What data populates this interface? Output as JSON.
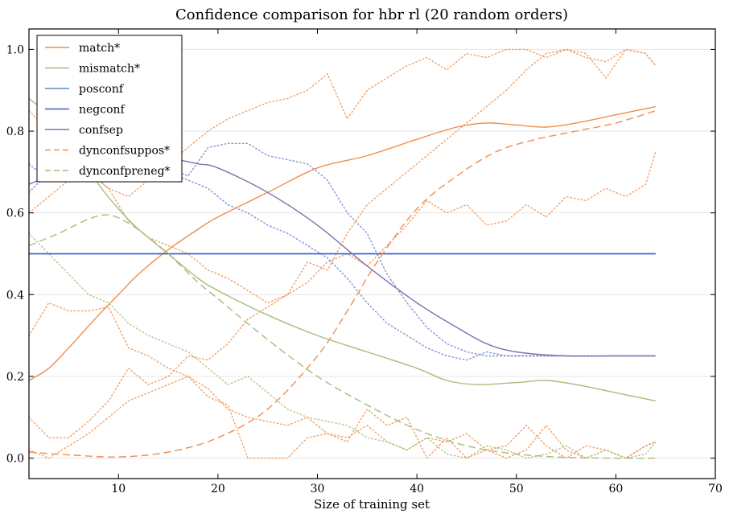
{
  "chart_data": {
    "type": "line",
    "title": "Confidence comparison for hbr rl (20 random orders)",
    "xlabel": "Size of training set",
    "ylabel": "",
    "xlim": [
      1,
      70
    ],
    "ylim": [
      -0.05,
      1.05
    ],
    "xticks": [
      10,
      20,
      30,
      40,
      50,
      60,
      70
    ],
    "yticks": [
      0.0,
      0.2,
      0.4,
      0.6,
      0.8,
      1.0
    ],
    "ytick_labels": [
      "0.0",
      "0.2",
      "0.4",
      "0.6",
      "0.8",
      "1.0"
    ],
    "grid": "horizontal",
    "legend_position": "top-left",
    "series": [
      {
        "name": "match*",
        "color": "#f28e4a",
        "style": "solid",
        "x": [
          1,
          3,
          5,
          8,
          10,
          12,
          15,
          18,
          20,
          25,
          30,
          35,
          40,
          44,
          47,
          50,
          53,
          56,
          60,
          64
        ],
        "values": [
          0.19,
          0.22,
          0.27,
          0.35,
          0.4,
          0.45,
          0.51,
          0.56,
          0.59,
          0.65,
          0.71,
          0.74,
          0.78,
          0.81,
          0.82,
          0.815,
          0.81,
          0.82,
          0.84,
          0.86
        ]
      },
      {
        "name": "mismatch*",
        "color": "#a6bd7a",
        "style": "solid",
        "x": [
          1,
          4,
          6,
          8,
          10,
          12,
          15,
          18,
          20,
          25,
          30,
          35,
          40,
          43,
          46,
          50,
          53,
          56,
          60,
          64
        ],
        "values": [
          0.88,
          0.82,
          0.75,
          0.67,
          0.61,
          0.56,
          0.5,
          0.44,
          0.41,
          0.35,
          0.3,
          0.26,
          0.22,
          0.19,
          0.18,
          0.185,
          0.19,
          0.18,
          0.16,
          0.14
        ]
      },
      {
        "name": "posconf",
        "color": "#5a8fc2",
        "style": "solid",
        "x": [
          1,
          64
        ],
        "values": [
          0.5,
          0.5
        ]
      },
      {
        "name": "negconf",
        "color": "#3b5fcf",
        "style": "solid",
        "x": [
          1,
          64
        ],
        "values": [
          0.5,
          0.5
        ]
      },
      {
        "name": "confsep",
        "color": "#8470ad",
        "style": "solid",
        "x": [
          1,
          3,
          5,
          8,
          10,
          13,
          15,
          18,
          20,
          25,
          30,
          35,
          40,
          44,
          47,
          50,
          55,
          60,
          64
        ],
        "values": [
          0.67,
          0.69,
          0.71,
          0.73,
          0.74,
          0.74,
          0.735,
          0.72,
          0.71,
          0.65,
          0.57,
          0.47,
          0.38,
          0.32,
          0.28,
          0.26,
          0.25,
          0.25,
          0.25
        ]
      },
      {
        "name": "dynconfsuppos*",
        "color": "#f28e4a",
        "style": "dashed",
        "x": [
          1,
          5,
          10,
          15,
          20,
          25,
          30,
          33,
          36,
          40,
          44,
          48,
          52,
          56,
          60,
          64
        ],
        "values": [
          0.015,
          0.008,
          0.003,
          0.015,
          0.05,
          0.12,
          0.25,
          0.36,
          0.48,
          0.61,
          0.69,
          0.75,
          0.78,
          0.8,
          0.82,
          0.85
        ]
      },
      {
        "name": "dynconfpreneg*",
        "color": "#a6bd7a",
        "style": "dashed",
        "x": [
          1,
          4,
          7,
          9,
          11,
          13,
          15,
          18,
          20,
          25,
          30,
          35,
          40,
          45,
          50,
          55,
          60,
          64
        ],
        "values": [
          0.52,
          0.55,
          0.585,
          0.595,
          0.575,
          0.54,
          0.5,
          0.43,
          0.39,
          0.29,
          0.2,
          0.13,
          0.07,
          0.03,
          0.01,
          0.002,
          0.0,
          0.0
        ]
      }
    ],
    "run_traces": [
      {
        "color": "#f28e4a",
        "x": [
          1,
          3,
          5,
          7,
          9,
          11,
          13,
          15,
          17,
          19,
          21,
          23,
          25,
          27,
          29,
          31,
          33,
          35,
          37,
          39,
          41,
          43,
          45,
          47,
          49,
          51,
          53,
          55,
          57,
          59,
          61,
          63,
          64
        ],
        "values": [
          0.3,
          0.38,
          0.36,
          0.36,
          0.37,
          0.27,
          0.25,
          0.22,
          0.2,
          0.17,
          0.12,
          0.1,
          0.09,
          0.08,
          0.1,
          0.06,
          0.05,
          0.08,
          0.04,
          0.02,
          0.05,
          0.04,
          0.06,
          0.02,
          0.0,
          0.02,
          0.08,
          0.02,
          0.0,
          0.02,
          0.0,
          0.03,
          0.04
        ]
      },
      {
        "color": "#f28e4a",
        "x": [
          1,
          3,
          5,
          7,
          9,
          11,
          13,
          15,
          17,
          19,
          21,
          23,
          25,
          27,
          29,
          31,
          33,
          35,
          37,
          39,
          41,
          43,
          45,
          47,
          49,
          51,
          53,
          55,
          57,
          59,
          61,
          63,
          64
        ],
        "values": [
          0.1,
          0.05,
          0.05,
          0.09,
          0.14,
          0.22,
          0.18,
          0.2,
          0.25,
          0.24,
          0.28,
          0.34,
          0.37,
          0.4,
          0.43,
          0.48,
          0.5,
          0.47,
          0.52,
          0.57,
          0.63,
          0.6,
          0.62,
          0.57,
          0.58,
          0.62,
          0.59,
          0.64,
          0.63,
          0.66,
          0.64,
          0.67,
          0.75
        ]
      },
      {
        "color": "#f28e4a",
        "x": [
          1,
          3,
          5,
          7,
          9,
          11,
          13,
          15,
          17,
          19,
          21,
          23,
          25,
          27,
          29,
          31,
          33,
          35,
          37,
          39,
          41,
          43,
          45,
          47,
          49,
          51,
          53,
          55,
          57,
          59,
          61,
          63,
          64
        ],
        "values": [
          0.85,
          0.8,
          0.74,
          0.7,
          0.66,
          0.64,
          0.68,
          0.72,
          0.76,
          0.8,
          0.83,
          0.85,
          0.87,
          0.88,
          0.9,
          0.94,
          0.83,
          0.9,
          0.93,
          0.96,
          0.98,
          0.95,
          0.99,
          0.98,
          1.0,
          1.0,
          0.98,
          1.0,
          0.99,
          0.93,
          1.0,
          0.99,
          0.96
        ]
      },
      {
        "color": "#f28e4a",
        "x": [
          1,
          3,
          5,
          7,
          9,
          11,
          13,
          15,
          17,
          19,
          21,
          23,
          25,
          27,
          29,
          31,
          33,
          35,
          37,
          39,
          41,
          43,
          45,
          47,
          49,
          51,
          53,
          55,
          57,
          59,
          61,
          63,
          64
        ],
        "values": [
          0.02,
          0.0,
          0.03,
          0.06,
          0.1,
          0.14,
          0.16,
          0.18,
          0.2,
          0.15,
          0.13,
          0.0,
          0.0,
          0.0,
          0.05,
          0.06,
          0.04,
          0.12,
          0.08,
          0.1,
          0.0,
          0.05,
          0.0,
          0.02,
          0.03,
          0.08,
          0.03,
          0.0,
          0.03,
          0.02,
          0.0,
          0.03,
          0.04
        ]
      },
      {
        "color": "#f28e4a",
        "x": [
          1,
          3,
          5,
          7,
          9,
          11,
          13,
          15,
          17,
          19,
          21,
          23,
          25,
          27,
          29,
          31,
          33,
          35,
          37,
          39,
          41,
          43,
          45,
          47,
          49,
          51,
          53,
          55,
          57,
          59,
          61,
          63,
          64
        ],
        "values": [
          0.6,
          0.64,
          0.68,
          0.7,
          0.66,
          0.58,
          0.54,
          0.52,
          0.5,
          0.46,
          0.44,
          0.41,
          0.38,
          0.4,
          0.48,
          0.46,
          0.55,
          0.62,
          0.66,
          0.7,
          0.74,
          0.78,
          0.82,
          0.86,
          0.9,
          0.95,
          0.99,
          1.0,
          0.98,
          0.97,
          1.0,
          0.99,
          0.96
        ]
      },
      {
        "color": "#a6bd7a",
        "x": [
          1,
          3,
          5,
          7,
          9,
          11,
          13,
          15,
          17,
          19,
          21,
          23,
          25,
          27,
          29,
          31,
          33,
          35,
          37,
          39,
          41,
          43,
          45,
          47,
          49,
          51,
          53,
          55,
          57,
          59,
          61,
          63,
          64
        ],
        "values": [
          0.55,
          0.5,
          0.45,
          0.4,
          0.38,
          0.33,
          0.3,
          0.28,
          0.26,
          0.22,
          0.18,
          0.2,
          0.16,
          0.12,
          0.1,
          0.09,
          0.08,
          0.05,
          0.04,
          0.02,
          0.05,
          0.01,
          0.0,
          0.03,
          0.02,
          0.0,
          0.01,
          0.03,
          0.0,
          0.02,
          0.0,
          0.01,
          0.04
        ]
      },
      {
        "color": "#6f7fd0",
        "x": [
          1,
          3,
          5,
          7,
          9,
          11,
          13,
          15,
          17,
          19,
          21,
          23,
          25,
          27,
          29,
          31,
          33,
          35,
          37,
          39,
          41,
          43,
          45,
          47,
          49,
          51,
          53,
          55,
          57,
          59,
          61,
          63,
          64
        ],
        "values": [
          0.72,
          0.68,
          0.72,
          0.7,
          0.74,
          0.72,
          0.7,
          0.71,
          0.69,
          0.76,
          0.77,
          0.77,
          0.74,
          0.73,
          0.72,
          0.68,
          0.6,
          0.55,
          0.45,
          0.38,
          0.32,
          0.28,
          0.26,
          0.25,
          0.25,
          0.25,
          0.25,
          0.25,
          0.25,
          0.25,
          0.25,
          0.25,
          0.25
        ]
      },
      {
        "color": "#6f7fd0",
        "x": [
          1,
          3,
          5,
          7,
          9,
          11,
          13,
          15,
          17,
          19,
          21,
          23,
          25,
          27,
          29,
          31,
          33,
          35,
          37,
          39,
          41,
          43,
          45,
          47,
          49,
          51,
          53,
          55,
          57,
          59,
          61,
          63,
          64
        ],
        "values": [
          0.65,
          0.7,
          0.68,
          0.72,
          0.7,
          0.73,
          0.71,
          0.7,
          0.68,
          0.66,
          0.62,
          0.6,
          0.57,
          0.55,
          0.52,
          0.49,
          0.44,
          0.38,
          0.33,
          0.3,
          0.27,
          0.25,
          0.24,
          0.26,
          0.25,
          0.25,
          0.25,
          0.25,
          0.25,
          0.25,
          0.25,
          0.25,
          0.25
        ]
      }
    ]
  }
}
